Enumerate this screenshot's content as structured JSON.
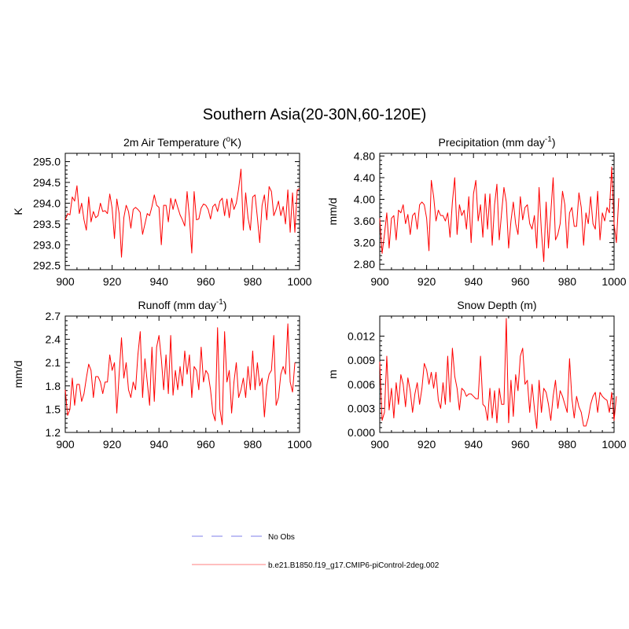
{
  "figure": {
    "title": "Southern Asia(20-30N,60-120E)"
  },
  "legend": {
    "entries": [
      {
        "label": "No Obs",
        "color": "#9999ee",
        "dash": true
      },
      {
        "label": "b.e21.B1850.f19_g17.CMIP6-piControl-2deg.002",
        "color": "#ff9999",
        "dash": false
      }
    ]
  },
  "chart_data": [
    {
      "type": "line",
      "title": "2m Air Temperature",
      "title_unit_prefix": "(",
      "title_unit_sup": "o",
      "title_unit_suffix": "K)",
      "ylabel": "K",
      "xlabel": "",
      "xlim": [
        900,
        1000
      ],
      "ylim": [
        292.4,
        295.2
      ],
      "xticks": [
        900,
        920,
        940,
        960,
        980,
        1000
      ],
      "yticks": [
        292.5,
        293.0,
        293.5,
        294.0,
        294.5,
        295.0
      ],
      "ytick_labels": [
        "292.5",
        "293.0",
        "293.5",
        "294.0",
        "294.5",
        "295.0"
      ],
      "series": [
        {
          "name": "b.e21.B1850.f19_g17.CMIP6-piControl-2deg.002",
          "color": "#ff0000",
          "x_start": 900,
          "values": [
            293.6,
            293.75,
            293.72,
            294.15,
            294.05,
            294.42,
            293.75,
            294.0,
            293.6,
            293.35,
            294.15,
            293.55,
            293.8,
            293.65,
            293.7,
            294.0,
            293.8,
            293.82,
            293.75,
            294.22,
            293.88,
            293.15,
            294.1,
            293.75,
            292.7,
            293.65,
            293.95,
            293.8,
            293.4,
            293.85,
            293.9,
            293.85,
            293.78,
            293.25,
            293.5,
            293.75,
            293.7,
            293.92,
            294.2,
            293.95,
            293.9,
            293.0,
            293.95,
            293.95,
            293.55,
            294.12,
            293.85,
            294.1,
            293.9,
            293.72,
            293.6,
            293.45,
            294.28,
            293.65,
            292.8,
            294.28,
            293.6,
            293.62,
            293.88,
            293.98,
            293.95,
            293.85,
            293.62,
            293.92,
            293.98,
            293.8,
            294.05,
            294.12,
            293.7,
            294.1,
            293.65,
            294.12,
            293.85,
            294.0,
            294.35,
            294.82,
            293.35,
            294.25,
            293.65,
            293.35,
            294.15,
            294.2,
            293.65,
            293.05,
            293.95,
            294.2,
            293.6,
            294.4,
            294.28,
            293.7,
            293.85,
            294.05,
            293.7,
            293.92,
            293.5,
            294.32,
            293.3,
            294.25,
            293.3,
            294.32,
            294.35
          ]
        }
      ]
    },
    {
      "type": "line",
      "title": "Precipitation",
      "title_unit_prefix": "(mm day",
      "title_unit_sup": "-1",
      "title_unit_suffix": ")",
      "ylabel": "mm/d",
      "xlabel": "",
      "xlim": [
        900,
        1000
      ],
      "ylim": [
        2.7,
        4.85
      ],
      "xticks": [
        900,
        920,
        940,
        960,
        980,
        1000
      ],
      "yticks": [
        2.8,
        3.2,
        3.6,
        4.0,
        4.4,
        4.8
      ],
      "ytick_labels": [
        "2.80",
        "3.20",
        "3.60",
        "4.00",
        "4.40",
        "4.80"
      ],
      "series": [
        {
          "name": "b.e21.B1850.f19_g17.CMIP6-piControl-2deg.002",
          "color": "#ff0000",
          "x_start": 900,
          "values": [
            3.65,
            3.0,
            3.35,
            3.75,
            3.1,
            3.65,
            3.7,
            3.25,
            3.8,
            3.75,
            3.9,
            3.55,
            3.72,
            3.35,
            3.7,
            3.75,
            3.45,
            3.9,
            3.95,
            3.9,
            3.65,
            3.05,
            4.35,
            4.05,
            3.6,
            3.8,
            3.7,
            3.7,
            3.6,
            3.75,
            3.3,
            3.95,
            4.4,
            3.35,
            3.9,
            3.7,
            3.8,
            3.45,
            4.05,
            3.2,
            4.1,
            4.35,
            3.6,
            3.9,
            3.3,
            4.1,
            3.45,
            4.1,
            3.15,
            3.9,
            4.28,
            3.25,
            3.75,
            4.22,
            3.95,
            3.1,
            3.6,
            3.95,
            3.55,
            3.35,
            4.05,
            3.62,
            3.85,
            3.9,
            3.55,
            3.45,
            3.7,
            3.1,
            4.22,
            3.4,
            2.85,
            3.95,
            3.1,
            3.75,
            4.4,
            3.25,
            3.35,
            3.55,
            4.15,
            3.9,
            3.1,
            3.75,
            3.85,
            3.5,
            3.5,
            4.12,
            3.85,
            3.15,
            3.75,
            3.55,
            4.05,
            3.55,
            3.45,
            4.15,
            3.25,
            3.75,
            3.6,
            3.85,
            3.75,
            4.6,
            3.55,
            3.2,
            4.02
          ]
        }
      ]
    },
    {
      "type": "line",
      "title": "Runoff",
      "title_unit_prefix": "(mm day",
      "title_unit_sup": "-1",
      "title_unit_suffix": ")",
      "ylabel": "mm/d",
      "xlabel": "",
      "xlim": [
        900,
        1000
      ],
      "ylim": [
        1.2,
        2.7
      ],
      "xticks": [
        900,
        920,
        940,
        960,
        980,
        1000
      ],
      "yticks": [
        1.2,
        1.5,
        1.8,
        2.1,
        2.4,
        2.7
      ],
      "ytick_labels": [
        "1.2",
        "1.5",
        "1.8",
        "2.1",
        "2.4",
        "2.7"
      ],
      "series": [
        {
          "name": "b.e21.B1850.f19_g17.CMIP6-piControl-2deg.002",
          "color": "#ff0000",
          "x_start": 900,
          "values": [
            1.75,
            1.42,
            1.5,
            1.9,
            1.55,
            1.82,
            1.82,
            1.6,
            1.7,
            1.9,
            2.08,
            2.0,
            1.65,
            1.92,
            1.92,
            1.85,
            1.7,
            1.85,
            1.85,
            2.2,
            2.0,
            2.1,
            1.45,
            1.95,
            2.42,
            1.9,
            2.1,
            1.75,
            1.65,
            1.85,
            1.75,
            2.2,
            2.5,
            1.65,
            2.15,
            1.85,
            1.55,
            2.3,
            1.6,
            2.3,
            2.45,
            2.15,
            1.75,
            2.2,
            1.7,
            2.45,
            1.68,
            2.0,
            1.75,
            2.05,
            1.8,
            2.25,
            1.95,
            2.2,
            1.65,
            2.05,
            2.0,
            1.75,
            2.3,
            1.85,
            2.0,
            1.95,
            1.75,
            1.45,
            1.35,
            2.55,
            1.5,
            1.3,
            2.5,
            1.85,
            2.0,
            1.45,
            1.85,
            2.1,
            1.65,
            1.75,
            1.9,
            1.65,
            2.05,
            1.75,
            2.25,
            1.75,
            2.1,
            1.8,
            1.9,
            1.4,
            1.8,
            1.95,
            2.0,
            2.45,
            1.55,
            1.65,
            1.95,
            2.05,
            1.95,
            2.6,
            1.85,
            1.72,
            2.1
          ]
        }
      ]
    },
    {
      "type": "line",
      "title": "Snow Depth (m)",
      "title_unit_prefix": "",
      "title_unit_sup": "",
      "title_unit_suffix": "",
      "ylabel": "m",
      "xlabel": "",
      "xlim": [
        900,
        1000
      ],
      "ylim": [
        0.0,
        0.0145
      ],
      "xticks": [
        900,
        920,
        940,
        960,
        980,
        1000
      ],
      "yticks": [
        0.0,
        0.003,
        0.006,
        0.009,
        0.012
      ],
      "ytick_labels": [
        "0.000",
        "0.003",
        "0.006",
        "0.009",
        "0.012"
      ],
      "series": [
        {
          "name": "b.e21.B1850.f19_g17.CMIP6-piControl-2deg.002",
          "color": "#ff0000",
          "x_start": 900,
          "values": [
            0.0088,
            0.0015,
            0.0025,
            0.0095,
            0.0028,
            0.0055,
            0.0018,
            0.0062,
            0.0035,
            0.0072,
            0.006,
            0.0032,
            0.0068,
            0.0052,
            0.0025,
            0.0048,
            0.0062,
            0.0035,
            0.0055,
            0.0086,
            0.0078,
            0.006,
            0.0075,
            0.0055,
            0.0075,
            0.004,
            0.003,
            0.0062,
            0.0035,
            0.0095,
            0.0038,
            0.0105,
            0.007,
            0.0055,
            0.0028,
            0.0055,
            0.0052,
            0.0045,
            0.0048,
            0.0048,
            0.0045,
            0.0042,
            0.0042,
            0.0095,
            0.0035,
            0.0032,
            0.0015,
            0.0055,
            0.0018,
            0.0052,
            0.0012,
            0.0055,
            0.0035,
            0.0035,
            0.0142,
            0.0012,
            0.0065,
            0.002,
            0.0072,
            0.0052,
            0.0095,
            0.0105,
            0.006,
            0.0065,
            0.0025,
            0.006,
            0.003,
            0.0005,
            0.0065,
            0.0025,
            0.0055,
            0.005,
            0.0035,
            0.0015,
            0.0045,
            0.0065,
            0.003,
            0.0052,
            0.0045,
            0.0035,
            0.0025,
            0.0092,
            0.0042,
            0.0018,
            0.0045,
            0.0032,
            0.0025,
            0.0008,
            0.0008,
            0.0018,
            0.0035,
            0.0045,
            0.005,
            0.0025,
            0.005,
            0.0045,
            0.0042,
            0.004,
            0.0025,
            0.005,
            0.0015,
            0.0045
          ]
        }
      ]
    }
  ]
}
